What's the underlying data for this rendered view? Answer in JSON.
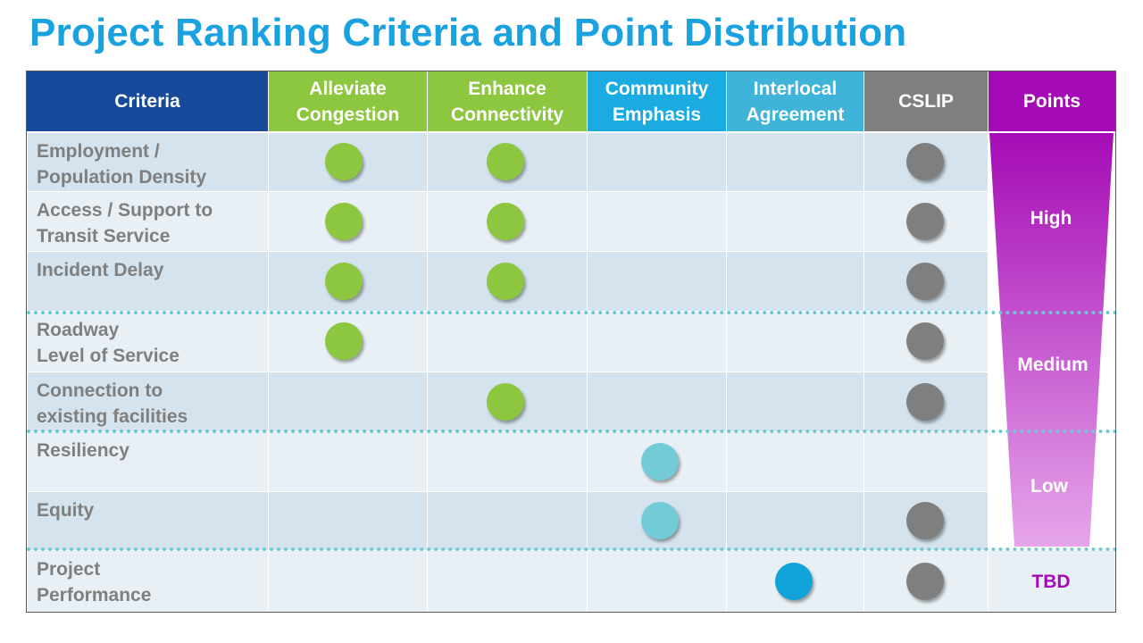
{
  "title": "Project Ranking Criteria and Point Distribution",
  "headers": [
    {
      "lines": [
        "Criteria"
      ],
      "color": "#174a9a"
    },
    {
      "lines": [
        "Alleviate",
        "Congestion"
      ],
      "color": "#8dc63f"
    },
    {
      "lines": [
        "Enhance",
        "Connectivity"
      ],
      "color": "#8dc63f"
    },
    {
      "lines": [
        "Community",
        "Emphasis"
      ],
      "color": "#1aabe0"
    },
    {
      "lines": [
        "Interlocal",
        "Agreement"
      ],
      "color": "#3fb3d8"
    },
    {
      "lines": [
        "CSLIP"
      ],
      "color": "#7f7f7f"
    },
    {
      "lines": [
        "Points"
      ],
      "color": "#a50bb5"
    }
  ],
  "rows": [
    {
      "lines": [
        "Employment /",
        "Population Density"
      ],
      "marks": [
        1,
        2,
        5
      ]
    },
    {
      "lines": [
        "Access  / Support to",
        "Transit Service"
      ],
      "marks": [
        1,
        2,
        5
      ]
    },
    {
      "lines": [
        "Incident Delay"
      ],
      "marks": [
        1,
        2,
        5
      ]
    },
    {
      "lines": [
        "Roadway",
        "Level of Service"
      ],
      "marks": [
        1,
        5
      ]
    },
    {
      "lines": [
        "Connection to",
        "existing facilities"
      ],
      "marks": [
        2,
        5
      ]
    },
    {
      "lines": [
        "Resiliency"
      ],
      "marks": [
        3
      ]
    },
    {
      "lines": [
        "Equity"
      ],
      "marks": [
        3,
        5
      ]
    },
    {
      "lines": [
        "Project",
        "Performance"
      ],
      "marks": [
        4,
        5
      ]
    }
  ],
  "dot_colors": {
    "1": "#8dc63f",
    "2": "#8dc63f",
    "3": "#74cbd8",
    "4": "#0fa3d9",
    "5": "#7f7f7f"
  },
  "points": {
    "high": "High",
    "medium": "Medium",
    "low": "Low",
    "tbd": "TBD"
  },
  "funnel_colors": {
    "top": "#a50bb5",
    "bottom": "#e6a6ea"
  }
}
